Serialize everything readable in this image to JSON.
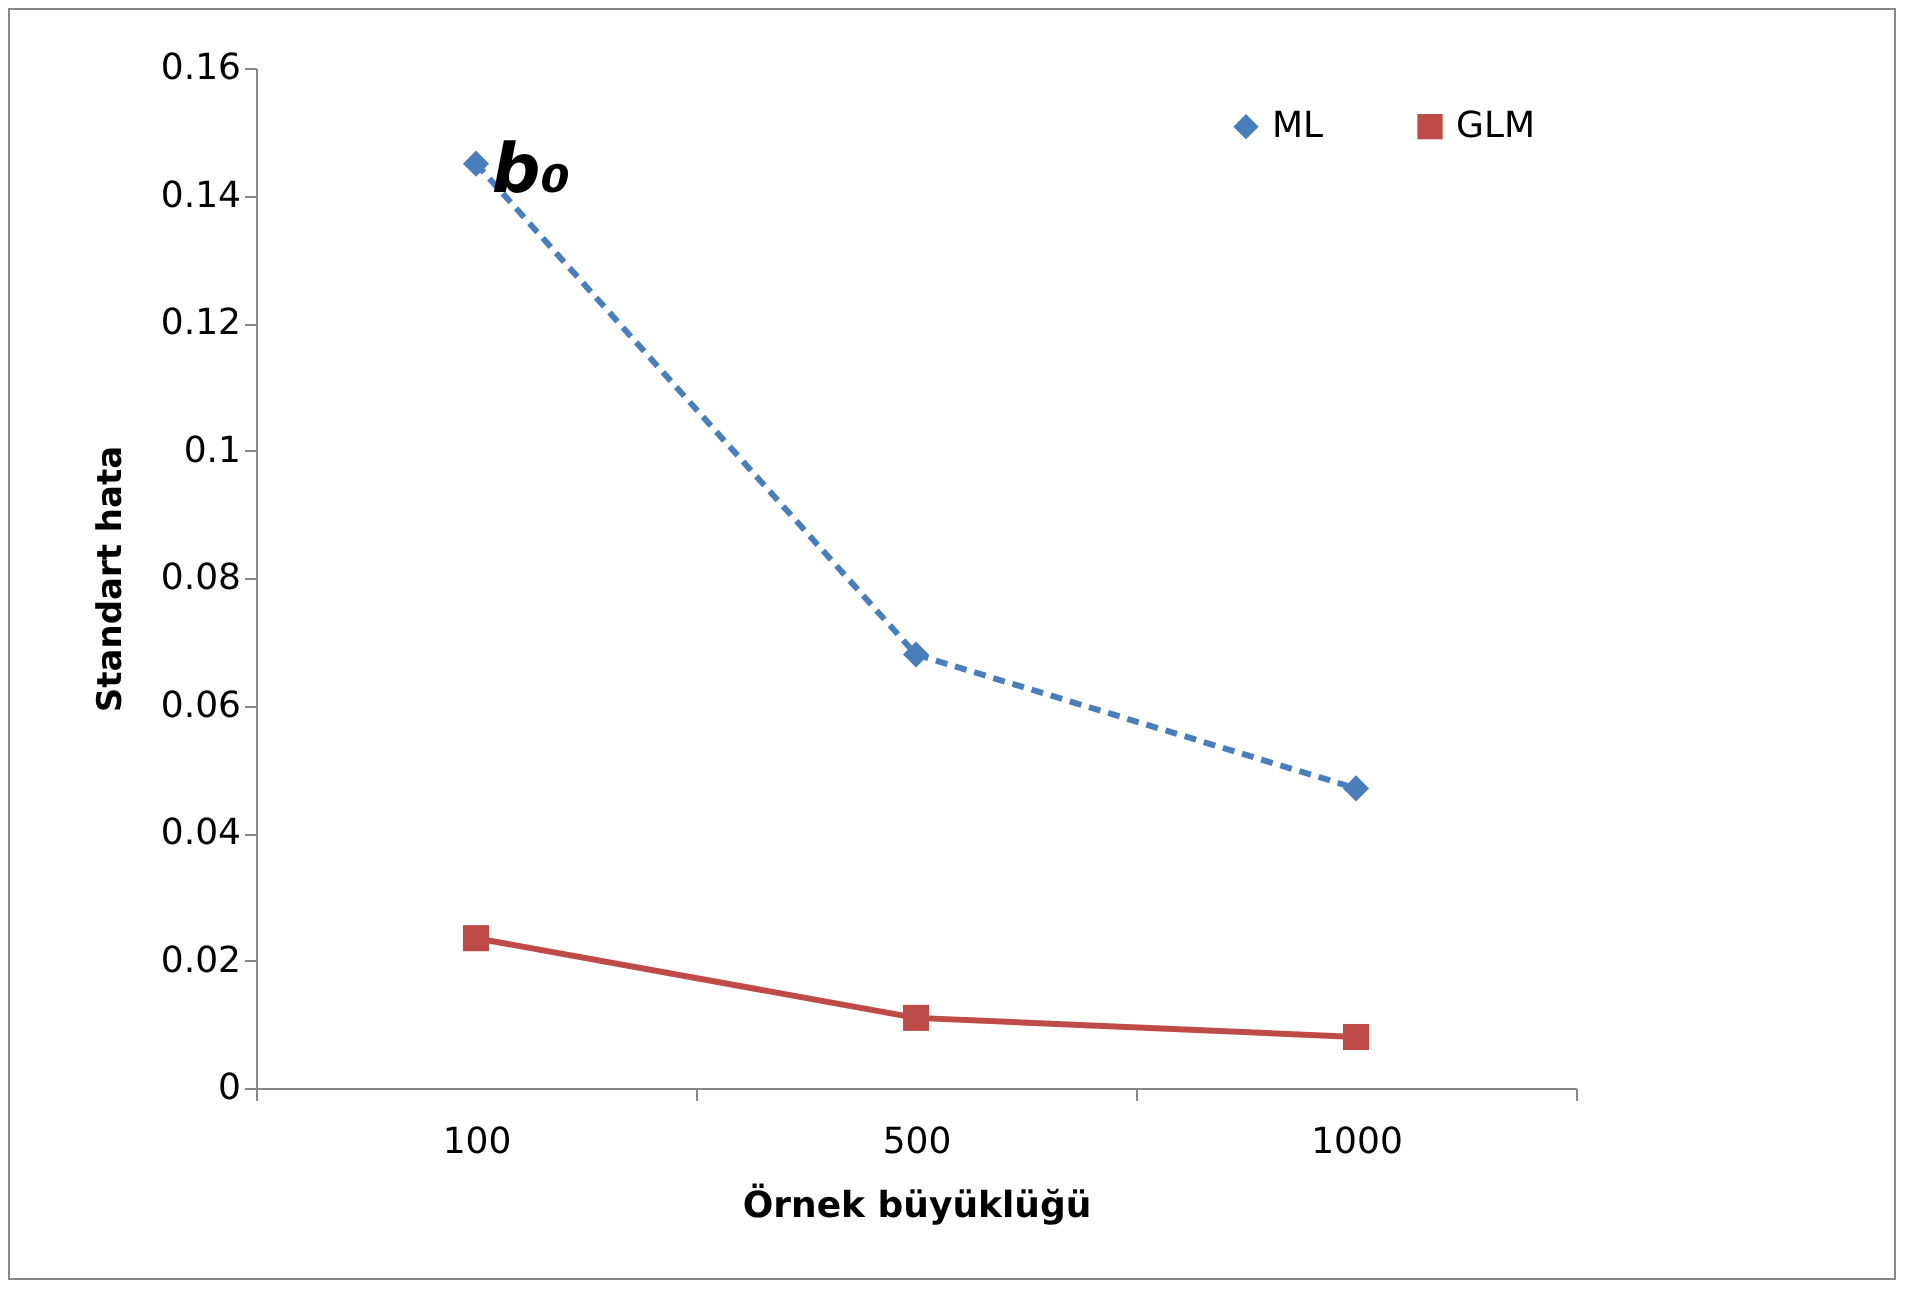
{
  "chart_data": {
    "type": "line",
    "title": "b₀",
    "xlabel": "Örnek büyüklüğü",
    "ylabel": "Standart  hata",
    "categories": [
      "100",
      "500",
      "1000"
    ],
    "series": [
      {
        "name": "ML",
        "color": "#4a7ebb",
        "values": [
          0.145,
          0.068,
          0.047
        ],
        "marker": "diamond",
        "line_style": "dashed"
      },
      {
        "name": "GLM",
        "color": "#be4b48",
        "values": [
          0.0235,
          0.011,
          0.008
        ],
        "marker": "square",
        "line_style": "solid"
      }
    ],
    "ylim": [
      0,
      0.16
    ],
    "yticks": [
      0,
      0.02,
      0.04,
      0.06,
      0.08,
      0.1,
      0.12,
      0.14,
      0.16
    ],
    "grid": false,
    "legend": "top right"
  }
}
